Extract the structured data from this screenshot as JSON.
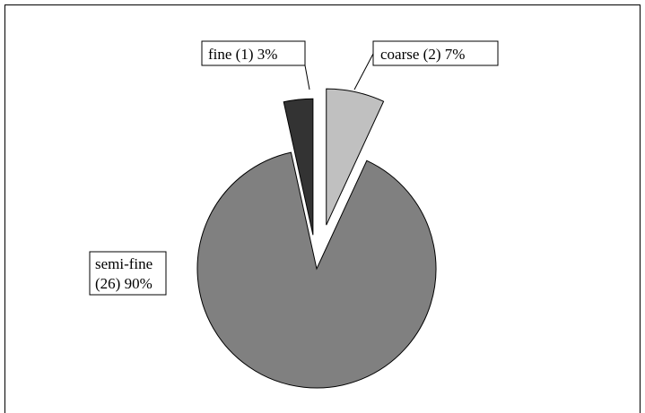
{
  "chart_data": {
    "type": "pie",
    "title": "",
    "slices": [
      {
        "label": "coarse (2) 7%",
        "category": "coarse",
        "count": 2,
        "percent": 7,
        "color": "#c0c0c0"
      },
      {
        "label_lines": [
          "semi-fine",
          "(26) 90%"
        ],
        "category": "semi-fine",
        "count": 26,
        "percent": 90,
        "color": "#808080"
      },
      {
        "label": "fine (1) 3%",
        "category": "fine",
        "count": 1,
        "percent": 3,
        "color": "#333333"
      }
    ],
    "exploded": true,
    "legend": "none"
  }
}
